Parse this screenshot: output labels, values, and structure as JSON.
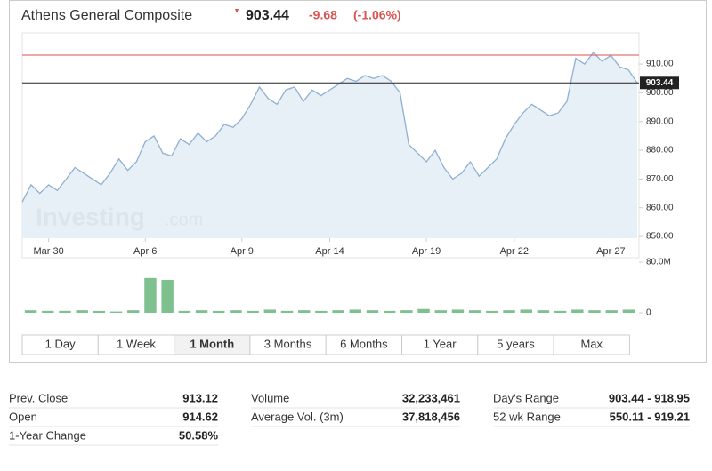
{
  "header": {
    "title": "Athens General Composite",
    "price": "903.44",
    "change": "-9.68",
    "change_pct": "(-1.06%)"
  },
  "chart_data": {
    "type": "line",
    "watermark_bold": "Investing",
    "watermark_tail": ".com",
    "color": "#8fb0d2",
    "fill": "#e4edf6",
    "values": [
      862,
      868,
      865,
      868,
      866,
      870,
      874,
      872,
      870,
      868,
      872,
      877,
      873,
      876,
      883,
      885,
      879,
      878,
      884,
      882,
      886,
      883,
      885,
      889,
      888,
      891,
      896,
      902,
      898,
      896,
      901,
      902,
      897,
      901,
      899,
      901,
      903,
      905,
      904,
      906,
      905,
      906,
      904,
      900,
      882,
      879,
      876,
      880,
      874,
      870,
      872,
      876,
      871,
      874,
      877,
      884,
      889,
      893,
      896,
      894,
      892,
      893,
      897,
      912,
      910,
      914,
      911,
      913,
      909,
      908,
      903.44
    ],
    "ylim": [
      849.4,
      919.3
    ],
    "yticks": [
      {
        "value": 850,
        "label": "850.00"
      },
      {
        "value": 860,
        "label": "860.00"
      },
      {
        "value": 870,
        "label": "870.00"
      },
      {
        "value": 880,
        "label": "880.00"
      },
      {
        "value": 890,
        "label": "890.00"
      },
      {
        "value": 900,
        "label": "900.00"
      },
      {
        "value": 910,
        "label": "910.00"
      }
    ],
    "xticks": [
      {
        "value": 3,
        "label": "Mar 30"
      },
      {
        "value": 14,
        "label": "Apr 6"
      },
      {
        "value": 25,
        "label": "Apr 9"
      },
      {
        "value": 35,
        "label": "Apr 14"
      },
      {
        "value": 46,
        "label": "Apr 19"
      },
      {
        "value": 56,
        "label": "Apr 22"
      },
      {
        "value": 67,
        "label": "Apr 27"
      }
    ],
    "xlim": [
      0,
      70
    ],
    "ref_lines": [
      {
        "value": 913.12,
        "color": "#d9534f"
      },
      {
        "value": 903.44,
        "color": "#222222"
      }
    ],
    "volume": {
      "color": "#7fc08f",
      "values": [
        4000000,
        3000000,
        3000000,
        4000000,
        3000000,
        2000000,
        4000000,
        55000000,
        52000000,
        3000000,
        4000000,
        3000000,
        4000000,
        3000000,
        5000000,
        3000000,
        4000000,
        3000000,
        4000000,
        5000000,
        4000000,
        3000000,
        4000000,
        6000000,
        4000000,
        5000000,
        4000000,
        3000000,
        4000000,
        5000000,
        4000000,
        3000000,
        5000000,
        4000000,
        4000000,
        5000000
      ],
      "ylim": [
        0,
        80000000
      ],
      "yticks": [
        {
          "value": 80000000,
          "label": "80.0M"
        },
        0
      ]
    }
  },
  "tabs": [
    "1 Day",
    "1 Week",
    "1 Month",
    "3 Months",
    "6 Months",
    "1 Year",
    "5 years",
    "Max"
  ],
  "active_tab": 2,
  "stats": [
    [
      [
        "Prev. Close",
        "913.12"
      ],
      [
        "Volume",
        "32,233,461"
      ],
      [
        "Day's Range",
        "903.44 - 918.95"
      ]
    ],
    [
      [
        "Open",
        "914.62"
      ],
      [
        "Average Vol. (3m)",
        "37,818,456"
      ],
      [
        "52 wk Range",
        "550.11 - 919.21"
      ]
    ],
    [
      [
        "1-Year Change",
        "50.58%"
      ]
    ]
  ]
}
